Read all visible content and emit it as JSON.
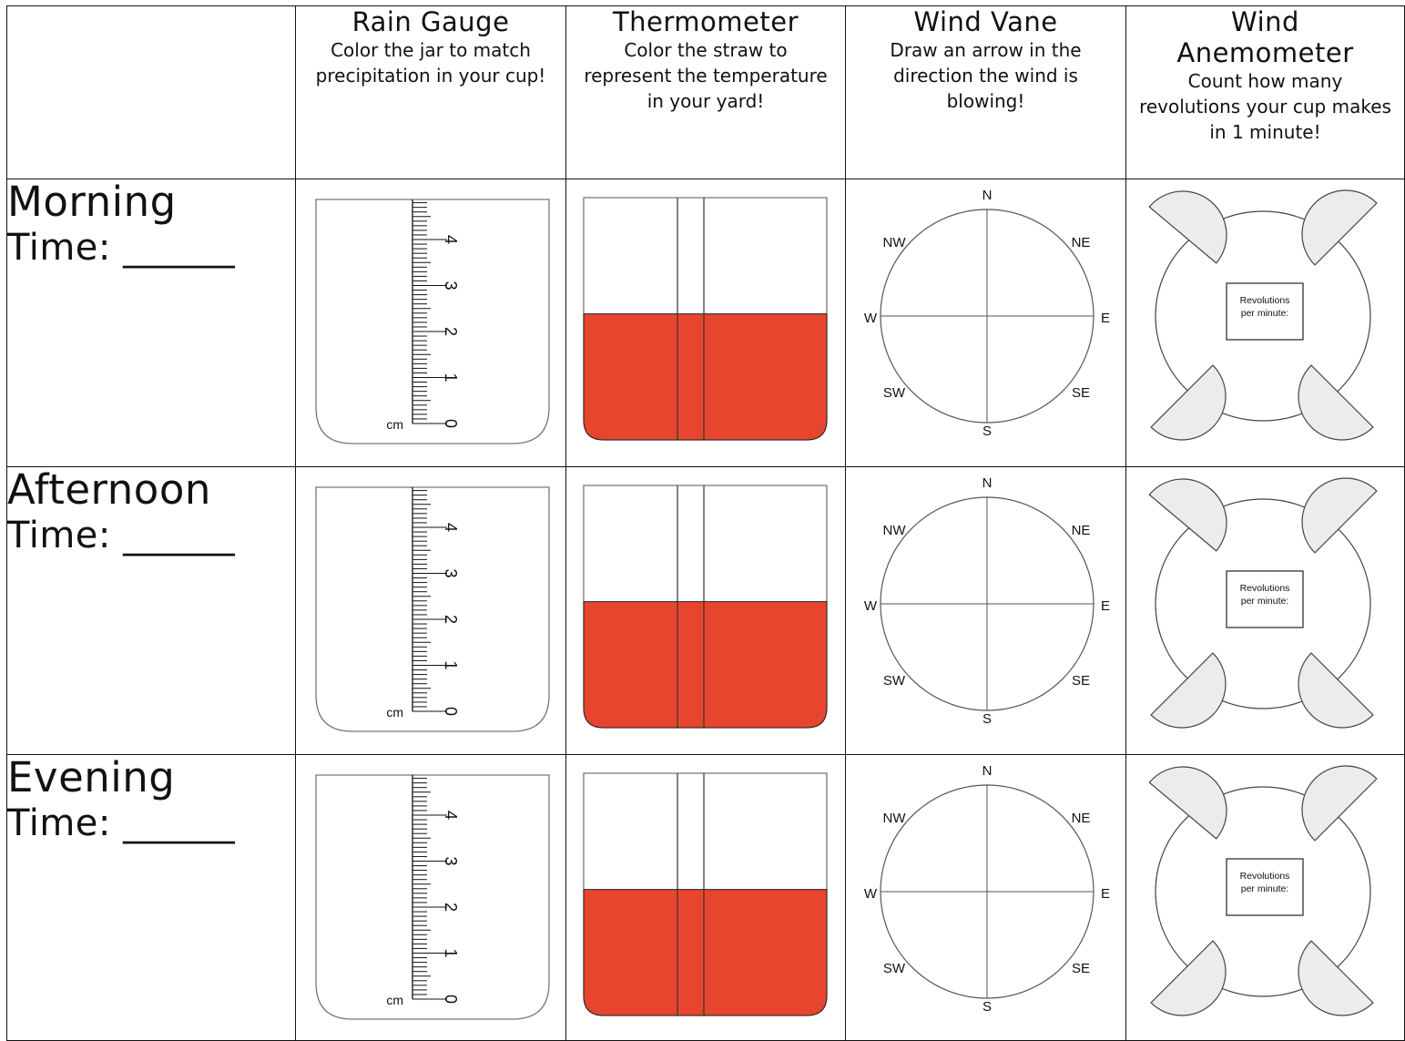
{
  "columns": [
    {
      "title": "",
      "subtitle": ""
    },
    {
      "title": "Rain Gauge",
      "subtitle": "Color the jar to match precipitation in your cup!"
    },
    {
      "title": "Thermometer",
      "subtitle": "Color the straw to represent the temperature in your yard!"
    },
    {
      "title": "Wind Vane",
      "subtitle": "Draw an arrow in the direction the wind is blowing!"
    },
    {
      "title": "Wind Anemometer",
      "subtitle": "Count how many revolutions your cup makes in 1 minute!"
    }
  ],
  "rows": [
    {
      "name": "Morning",
      "time": "Time: ______"
    },
    {
      "name": "Afternoon",
      "time": "Time: ______"
    },
    {
      "name": "Evening",
      "time": "Time: ______"
    }
  ],
  "rain_gauge": {
    "unit": "cm",
    "tick_labels": [
      "0",
      "1",
      "2",
      "3",
      "4"
    ]
  },
  "thermometer": {
    "fill_fraction": 0.52,
    "fill_color": "#e8452f"
  },
  "wind_vane": {
    "directions": [
      "N",
      "NE",
      "E",
      "SE",
      "S",
      "SW",
      "W",
      "NW"
    ]
  },
  "anemometer": {
    "box_label_line1": "Revolutions",
    "box_label_line2": "per minute:",
    "cup_color": "#ececec"
  }
}
